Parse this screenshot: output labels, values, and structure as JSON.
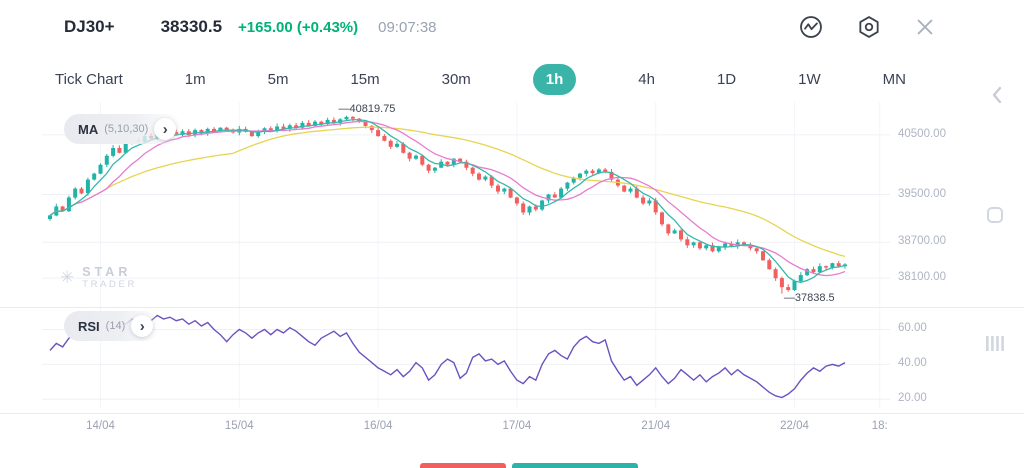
{
  "header": {
    "symbol": "DJ30+",
    "price": "38330.5",
    "change": "+165.00 (+0.43%)",
    "time": "09:07:38",
    "icons": [
      "market-activity",
      "settings",
      "close"
    ]
  },
  "timeframes": {
    "items": [
      "Tick Chart",
      "1m",
      "5m",
      "15m",
      "30m",
      "1h",
      "4h",
      "1D",
      "1W",
      "MN"
    ],
    "active": "1h"
  },
  "indicators": {
    "ma": {
      "name": "MA",
      "params": "(5,10,30)"
    },
    "rsi": {
      "name": "RSI",
      "params": "(14)"
    }
  },
  "watermark": {
    "title": "STAR",
    "subtitle": "TRADER"
  },
  "edge_icons": [
    "collapse-panel",
    "window",
    "order-queue"
  ],
  "theme": {
    "accent": "#3ab3a8",
    "positive": "#00b178",
    "sell_red": "#f25f5f",
    "buy_teal": "#2db4a8"
  },
  "chart_data": {
    "type": "candlestick",
    "symbol": "DJ30+",
    "timeframe": "1h",
    "overlays": [
      "MA(5)",
      "MA(10)",
      "MA(30)"
    ],
    "sub_chart": "RSI(14)",
    "closes": [
      39150,
      39300,
      39220,
      39450,
      39600,
      39520,
      39750,
      39850,
      40000,
      40150,
      40280,
      40200,
      40350,
      40420,
      40380,
      40480,
      40440,
      40520,
      40470,
      40550,
      40500,
      40560,
      40500,
      40580,
      40530,
      40600,
      40560,
      40620,
      40580,
      40540,
      40600,
      40550,
      40480,
      40560,
      40610,
      40570,
      40640,
      40600,
      40660,
      40620,
      40700,
      40650,
      40720,
      40680,
      40750,
      40700,
      40760,
      40800,
      40770,
      40720,
      40650,
      40580,
      40480,
      40400,
      40300,
      40350,
      40200,
      40100,
      40150,
      40000,
      39900,
      39950,
      40050,
      40000,
      40100,
      40050,
      39950,
      39850,
      39750,
      39800,
      39650,
      39550,
      39600,
      39450,
      39350,
      39200,
      39300,
      39250,
      39400,
      39500,
      39450,
      39600,
      39700,
      39780,
      39850,
      39900,
      39860,
      39920,
      39880,
      39750,
      39650,
      39550,
      39600,
      39450,
      39350,
      39400,
      39200,
      39000,
      38850,
      38900,
      38750,
      38650,
      38700,
      38600,
      38650,
      38550,
      38620,
      38680,
      38640,
      38700,
      38660,
      38600,
      38550,
      38400,
      38250,
      38100,
      37950,
      37900,
      38050,
      38150,
      38250,
      38200,
      38300,
      38280,
      38350,
      38300,
      38330.5
    ],
    "rsi14": [
      48,
      52,
      50,
      55,
      58,
      56,
      61,
      63,
      60,
      64,
      62,
      65,
      63,
      66,
      64,
      67,
      65,
      68,
      66,
      67,
      65,
      66,
      63,
      65,
      62,
      64,
      60,
      57,
      53,
      57,
      60,
      58,
      55,
      58,
      60,
      57,
      60,
      58,
      61,
      59,
      56,
      53,
      51,
      55,
      57,
      59,
      56,
      58,
      52,
      47,
      44,
      41,
      38,
      36,
      34,
      37,
      33,
      36,
      41,
      38,
      31,
      34,
      40,
      43,
      41,
      32,
      35,
      44,
      46,
      42,
      43,
      40,
      42,
      36,
      31,
      29,
      33,
      31,
      40,
      46,
      48,
      45,
      43,
      50,
      54,
      56,
      53,
      52,
      54,
      42,
      36,
      31,
      33,
      28,
      31,
      34,
      38,
      33,
      29,
      32,
      37,
      34,
      31,
      34,
      30,
      33,
      35,
      38,
      34,
      37,
      34,
      32,
      30,
      27,
      24,
      22,
      21,
      23,
      26,
      31,
      35,
      38,
      36,
      39,
      40,
      39,
      41
    ],
    "y_ticks": [
      {
        "price": 40500,
        "label": "40500.00"
      },
      {
        "price": 39500,
        "label": "39500.00"
      },
      {
        "price": 38700,
        "label": "38700.00"
      },
      {
        "price": 38100,
        "label": "38100.00"
      }
    ],
    "rsi_ticks": [
      {
        "value": 60,
        "label": "60.00"
      },
      {
        "value": 40,
        "label": "40.00"
      },
      {
        "value": 20,
        "label": "20.00"
      }
    ],
    "x_labels": [
      {
        "label": "14/04",
        "index": 8
      },
      {
        "label": "15/04",
        "index": 30
      },
      {
        "label": "16/04",
        "index": 52
      },
      {
        "label": "17/04",
        "index": 74
      },
      {
        "label": "21/04",
        "index": 96
      },
      {
        "label": "22/04",
        "index": 118
      },
      {
        "label": "18:",
        "index": 131.5
      }
    ],
    "annotations": [
      {
        "type": "high",
        "index": 47,
        "price": 40819.75,
        "label": "—40819.75"
      },
      {
        "type": "low",
        "index": 116,
        "price": 37838.5,
        "label": "—37838.5"
      }
    ],
    "colors": {
      "up": "#21b3a6",
      "down": "#f15f5f",
      "ma5": "#35b8ac",
      "ma10": "#e87bd0",
      "ma30": "#e7d44f",
      "rsi": "#6b52c0"
    },
    "price_range": {
      "min": 37700,
      "max": 41050
    },
    "rsi_range": {
      "min": 15,
      "max": 70
    }
  }
}
